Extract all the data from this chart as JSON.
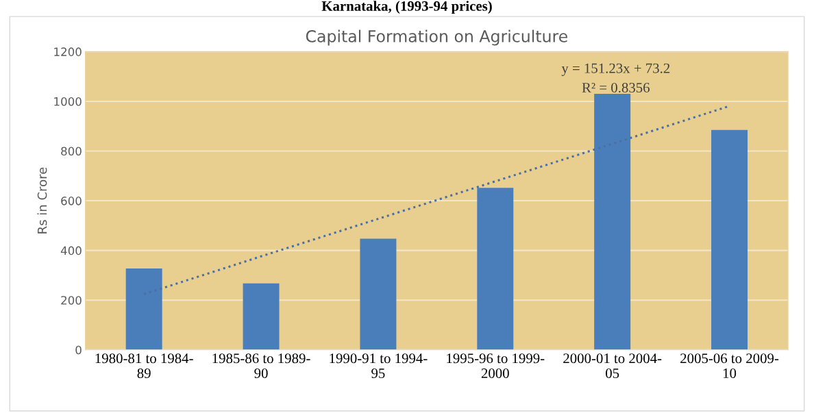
{
  "chart_data": {
    "type": "bar",
    "title": "Capital Formation on Agriculture",
    "ylabel": "Rs in Crore",
    "categories": [
      "1980-81 to 1984-89",
      "1985-86 to 1989-90",
      "1990-91 to 1994-95",
      "1995-96 to 1999-2000",
      "2000-01 to 2004-05",
      "2005-06 to 2009-10"
    ],
    "series": [
      {
        "color": "#4a7ebb",
        "values": [
          327,
          267,
          447,
          652,
          1030,
          885
        ]
      },
      {
        "type": "line",
        "color": "#4a6fa5",
        "line_style": "dotted",
        "values": [
          224,
          376,
          527,
          678,
          829,
          981
        ]
      }
    ],
    "ylim": [
      0,
      1200
    ],
    "yticks": [
      0,
      200,
      400,
      600,
      800,
      1000,
      1200
    ],
    "grid": "y",
    "annotations": [
      "Karnataka, (1993-94 prices)",
      "y = 151.23x + 73.2",
      "R² = 0.8356"
    ]
  }
}
